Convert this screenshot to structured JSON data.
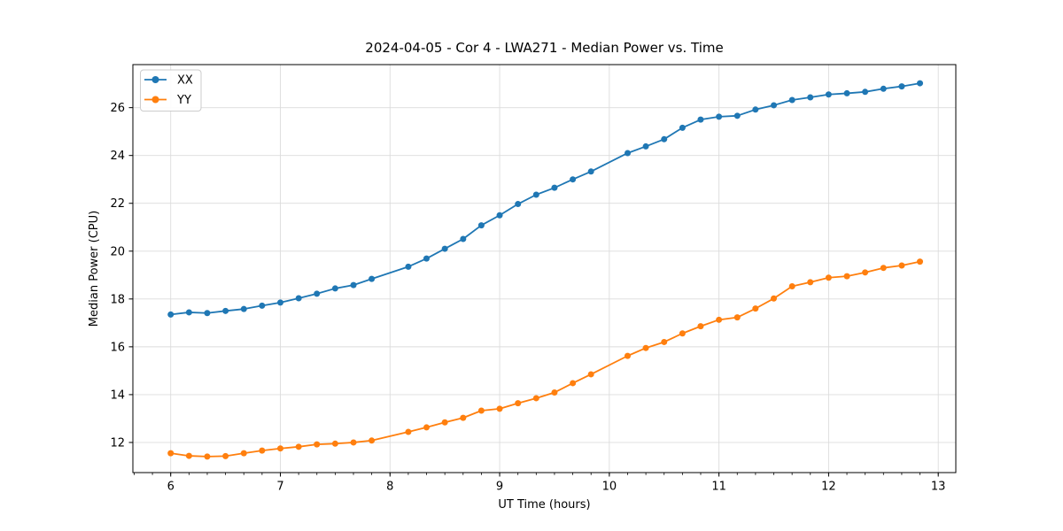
{
  "figure": {
    "background": "#ffffff",
    "grid_color": "#dcdcdc",
    "spine_color": "#000000"
  },
  "chart_data": {
    "type": "line",
    "title": "2024-04-05 - Cor 4 - LWA271 - Median Power vs. Time",
    "xlabel": "UT Time (hours)",
    "ylabel": "Median Power (CPU)",
    "xlim": [
      5.655,
      13.16
    ],
    "ylim": [
      10.74,
      27.8
    ],
    "x_ticks": [
      6,
      7,
      8,
      9,
      10,
      11,
      12,
      13
    ],
    "y_ticks": [
      12,
      14,
      16,
      18,
      20,
      22,
      24,
      26
    ],
    "x_minor_tick_interval": 0.166667,
    "grid": "major-only",
    "legend_position": "upper-left",
    "marker": "circle",
    "series": [
      {
        "name": "XX",
        "color": "#1f77b4",
        "x": [
          6.0,
          6.167,
          6.333,
          6.5,
          6.667,
          6.833,
          7.0,
          7.167,
          7.333,
          7.5,
          7.667,
          7.833,
          8.167,
          8.333,
          8.5,
          8.667,
          8.833,
          9.0,
          9.167,
          9.333,
          9.5,
          9.667,
          9.833,
          10.167,
          10.333,
          10.5,
          10.667,
          10.833,
          11.0,
          11.167,
          11.333,
          11.5,
          11.667,
          11.833,
          12.0,
          12.167,
          12.333,
          12.5,
          12.667,
          12.833
        ],
        "y": [
          17.35,
          17.44,
          17.41,
          17.5,
          17.58,
          17.72,
          17.85,
          18.03,
          18.22,
          18.44,
          18.58,
          18.84,
          19.35,
          19.69,
          20.1,
          20.51,
          21.08,
          21.5,
          21.97,
          22.36,
          22.65,
          23.0,
          23.33,
          24.1,
          24.38,
          24.68,
          25.16,
          25.5,
          25.62,
          25.66,
          25.92,
          26.1,
          26.32,
          26.43,
          26.55,
          26.6,
          26.66,
          26.79,
          26.89,
          27.02
        ]
      },
      {
        "name": "YY",
        "color": "#ff7f0e",
        "x": [
          6.0,
          6.167,
          6.333,
          6.5,
          6.667,
          6.833,
          7.0,
          7.167,
          7.333,
          7.5,
          7.667,
          7.833,
          8.167,
          8.333,
          8.5,
          8.667,
          8.833,
          9.0,
          9.167,
          9.333,
          9.5,
          9.667,
          9.833,
          10.167,
          10.333,
          10.5,
          10.667,
          10.833,
          11.0,
          11.167,
          11.333,
          11.5,
          11.667,
          11.833,
          12.0,
          12.167,
          12.333,
          12.5,
          12.667,
          12.833
        ],
        "y": [
          11.55,
          11.44,
          11.41,
          11.43,
          11.55,
          11.66,
          11.75,
          11.82,
          11.92,
          11.95,
          12.0,
          12.08,
          12.44,
          12.63,
          12.84,
          13.03,
          13.33,
          13.41,
          13.64,
          13.85,
          14.09,
          14.48,
          14.85,
          15.62,
          15.95,
          16.2,
          16.56,
          16.86,
          17.13,
          17.23,
          17.6,
          18.02,
          18.53,
          18.7,
          18.89,
          18.95,
          19.11,
          19.3,
          19.4,
          19.56
        ]
      }
    ]
  }
}
